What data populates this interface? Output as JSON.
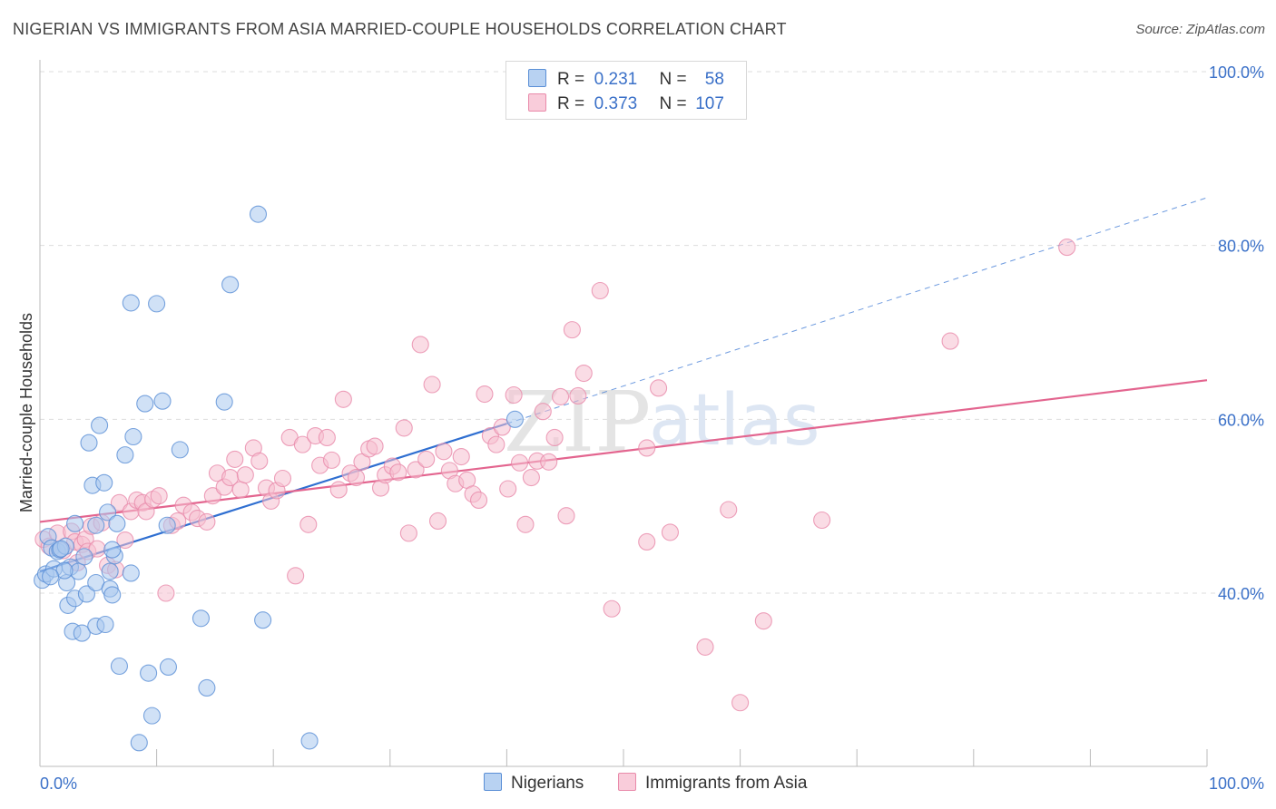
{
  "header": {
    "title": "NIGERIAN VS IMMIGRANTS FROM ASIA MARRIED-COUPLE HOUSEHOLDS CORRELATION CHART",
    "source": "Source: ZipAtlas.com"
  },
  "legend": {
    "rows": [
      {
        "r_label": "R =",
        "r_value": "0.231",
        "n_label": "N =",
        "n_value": "58"
      },
      {
        "r_label": "R =",
        "r_value": "0.373",
        "n_label": "N =",
        "n_value": "107"
      }
    ]
  },
  "bottom_legend": [
    "Nigerians",
    "Immigrants from Asia"
  ],
  "watermark": {
    "part1": "ZIP",
    "part2": "atlas"
  },
  "colors": {
    "blue_fill": "#a9c8ef",
    "blue_stroke": "#5a8fd6",
    "blue_line": "#2f6fd1",
    "pink_fill": "#f6bfd0",
    "pink_stroke": "#e98aaa",
    "pink_line": "#e3658f",
    "axis_label": "#3a70c8",
    "grid": "#dddddd"
  },
  "chart_data": {
    "type": "scatter",
    "title": "NIGERIAN VS IMMIGRANTS FROM ASIA MARRIED-COUPLE HOUSEHOLDS CORRELATION CHART",
    "xlabel": "",
    "ylabel": "Married-couple Households",
    "xlim": [
      0,
      100
    ],
    "ylim": [
      21,
      104
    ],
    "x_tick_labels": {
      "0": "0.0%",
      "100": "100.0%"
    },
    "y_tick_labels": {
      "40": "40.0%",
      "60": "60.0%",
      "80": "80.0%",
      "100": "100.0%"
    },
    "grid": true,
    "legend_position": "top-center",
    "series": [
      {
        "name": "Nigerians",
        "r": 0.231,
        "n": 58,
        "trend": {
          "x": [
            0,
            40
          ],
          "y": [
            42.5,
            59.5
          ]
        },
        "trend_extended": {
          "x": [
            40,
            100
          ],
          "y": [
            59.5,
            85.5
          ]
        },
        "points": [
          [
            0.2,
            41.5
          ],
          [
            0.5,
            42.2
          ],
          [
            0.7,
            46.5
          ],
          [
            1.0,
            45.2
          ],
          [
            1.2,
            42.8
          ],
          [
            1.5,
            44.8
          ],
          [
            1.7,
            45.0
          ],
          [
            2.2,
            45.4
          ],
          [
            2.3,
            41.2
          ],
          [
            2.4,
            38.6
          ],
          [
            2.6,
            43.0
          ],
          [
            2.8,
            35.6
          ],
          [
            3.0,
            48.0
          ],
          [
            3.0,
            39.4
          ],
          [
            3.3,
            42.5
          ],
          [
            3.6,
            35.4
          ],
          [
            3.8,
            44.2
          ],
          [
            4.0,
            39.9
          ],
          [
            4.2,
            57.3
          ],
          [
            4.5,
            52.4
          ],
          [
            4.8,
            41.2
          ],
          [
            4.8,
            47.8
          ],
          [
            4.8,
            36.2
          ],
          [
            5.1,
            59.3
          ],
          [
            5.5,
            52.7
          ],
          [
            5.6,
            36.4
          ],
          [
            5.8,
            49.3
          ],
          [
            6.0,
            42.5
          ],
          [
            6.0,
            40.5
          ],
          [
            6.2,
            39.8
          ],
          [
            6.4,
            44.3
          ],
          [
            6.6,
            48.0
          ],
          [
            6.8,
            31.6
          ],
          [
            7.3,
            55.9
          ],
          [
            7.8,
            42.3
          ],
          [
            7.8,
            73.4
          ],
          [
            8.0,
            58.0
          ],
          [
            8.5,
            22.8
          ],
          [
            9.0,
            61.8
          ],
          [
            9.3,
            30.8
          ],
          [
            9.6,
            25.9
          ],
          [
            10.0,
            73.3
          ],
          [
            10.5,
            62.1
          ],
          [
            10.9,
            47.8
          ],
          [
            11.0,
            31.5
          ],
          [
            12.0,
            56.5
          ],
          [
            13.8,
            37.1
          ],
          [
            14.3,
            29.1
          ],
          [
            15.8,
            62.0
          ],
          [
            16.3,
            75.5
          ],
          [
            18.7,
            83.6
          ],
          [
            19.1,
            36.9
          ],
          [
            23.1,
            23.0
          ],
          [
            40.7,
            60.0
          ],
          [
            1.8,
            45.1
          ],
          [
            6.2,
            45.0
          ],
          [
            2.1,
            42.6
          ],
          [
            0.9,
            41.9
          ]
        ]
      },
      {
        "name": "Immigrants from Asia",
        "r": 0.373,
        "n": 107,
        "trend": {
          "x": [
            0,
            100
          ],
          "y": [
            48.2,
            64.5
          ]
        },
        "points": [
          [
            0.3,
            46.2
          ],
          [
            0.8,
            45.4
          ],
          [
            1.5,
            46.9
          ],
          [
            2.0,
            44.9
          ],
          [
            2.7,
            47.1
          ],
          [
            3.0,
            45.9
          ],
          [
            3.2,
            43.5
          ],
          [
            3.6,
            45.6
          ],
          [
            3.9,
            46.2
          ],
          [
            4.1,
            44.8
          ],
          [
            4.4,
            47.7
          ],
          [
            4.9,
            45.1
          ],
          [
            5.3,
            48.1
          ],
          [
            5.8,
            43.2
          ],
          [
            6.5,
            42.7
          ],
          [
            6.8,
            50.4
          ],
          [
            7.3,
            46.1
          ],
          [
            7.8,
            49.4
          ],
          [
            8.3,
            50.7
          ],
          [
            8.8,
            50.4
          ],
          [
            9.1,
            49.4
          ],
          [
            9.7,
            50.8
          ],
          [
            10.2,
            51.2
          ],
          [
            10.8,
            40.0
          ],
          [
            11.3,
            47.8
          ],
          [
            11.8,
            48.3
          ],
          [
            12.3,
            50.1
          ],
          [
            13.0,
            49.3
          ],
          [
            13.5,
            48.6
          ],
          [
            14.3,
            48.2
          ],
          [
            14.8,
            51.2
          ],
          [
            15.2,
            53.8
          ],
          [
            15.8,
            52.2
          ],
          [
            16.3,
            53.3
          ],
          [
            16.7,
            55.4
          ],
          [
            17.2,
            51.9
          ],
          [
            17.6,
            53.6
          ],
          [
            18.3,
            56.7
          ],
          [
            18.8,
            55.2
          ],
          [
            19.4,
            52.1
          ],
          [
            19.8,
            50.6
          ],
          [
            20.3,
            51.8
          ],
          [
            20.8,
            53.2
          ],
          [
            21.4,
            57.9
          ],
          [
            21.9,
            42.0
          ],
          [
            22.5,
            57.1
          ],
          [
            23.0,
            47.9
          ],
          [
            23.6,
            58.1
          ],
          [
            24.0,
            54.7
          ],
          [
            24.6,
            57.9
          ],
          [
            25.0,
            55.3
          ],
          [
            25.6,
            51.9
          ],
          [
            26.0,
            62.3
          ],
          [
            26.6,
            53.8
          ],
          [
            27.1,
            53.3
          ],
          [
            27.6,
            55.1
          ],
          [
            28.2,
            56.6
          ],
          [
            28.7,
            56.9
          ],
          [
            29.2,
            52.1
          ],
          [
            29.6,
            53.6
          ],
          [
            30.2,
            54.6
          ],
          [
            30.7,
            53.9
          ],
          [
            31.2,
            59.0
          ],
          [
            31.6,
            46.9
          ],
          [
            32.2,
            54.2
          ],
          [
            32.6,
            68.6
          ],
          [
            33.1,
            55.4
          ],
          [
            33.6,
            64.0
          ],
          [
            34.1,
            48.3
          ],
          [
            34.6,
            56.3
          ],
          [
            35.1,
            54.1
          ],
          [
            35.6,
            52.6
          ],
          [
            36.1,
            55.7
          ],
          [
            36.6,
            53.0
          ],
          [
            37.1,
            51.4
          ],
          [
            37.6,
            50.7
          ],
          [
            38.1,
            62.9
          ],
          [
            38.6,
            58.1
          ],
          [
            39.1,
            57.1
          ],
          [
            39.6,
            59.1
          ],
          [
            40.1,
            52.0
          ],
          [
            40.6,
            62.8
          ],
          [
            41.1,
            55.0
          ],
          [
            41.6,
            47.9
          ],
          [
            42.1,
            53.3
          ],
          [
            42.6,
            55.2
          ],
          [
            43.1,
            60.9
          ],
          [
            43.6,
            55.1
          ],
          [
            44.1,
            57.9
          ],
          [
            44.6,
            62.6
          ],
          [
            45.1,
            48.9
          ],
          [
            45.6,
            70.3
          ],
          [
            46.1,
            62.7
          ],
          [
            46.6,
            65.3
          ],
          [
            48.0,
            74.8
          ],
          [
            49.0,
            38.2
          ],
          [
            52.0,
            56.7
          ],
          [
            52.0,
            45.9
          ],
          [
            53.0,
            63.6
          ],
          [
            54.0,
            47.0
          ],
          [
            57.0,
            33.8
          ],
          [
            59.0,
            49.6
          ],
          [
            60.0,
            27.4
          ],
          [
            62.0,
            36.8
          ],
          [
            67.0,
            48.4
          ],
          [
            78.0,
            69.0
          ],
          [
            88.0,
            79.8
          ]
        ]
      }
    ]
  }
}
